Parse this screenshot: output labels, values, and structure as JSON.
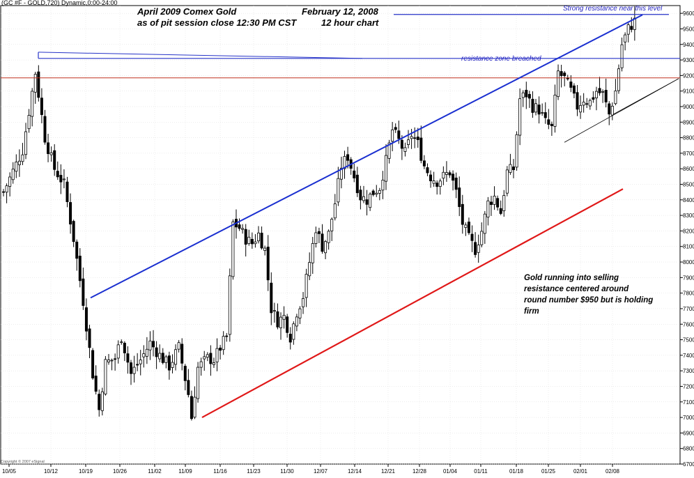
{
  "header": {
    "symbol_label": "(GC #F - GOLD,720) Dynamic,0:00-24:00",
    "copyright": "Copyright © 2007 eSignal"
  },
  "titles": {
    "line1_left": "April 2009 Comex Gold",
    "line1_right": "February 12, 2008",
    "line2_left": "as of pit session close 12:30 PM CST",
    "line2_right": "12 hour chart"
  },
  "annotations": {
    "strong_resistance": "Strong resistance near this level",
    "zone_breached": "resistance zone breached",
    "note_lines": [
      "Gold running into selling",
      "resistance centered around",
      "round number $950 but is holding",
      "firm"
    ]
  },
  "colors": {
    "background": "#ffffff",
    "candle": "#000000",
    "upper_trendline": "#1a2fd0",
    "lower_trendline": "#e01818",
    "red_horizontal": "#c0301e",
    "blue_horizontal": "#2633c8",
    "thin_channel": "#000000",
    "grid": "#d9d9d9"
  },
  "chart_data": {
    "type": "candlestick",
    "title": "April 2009 Comex Gold",
    "ylim": [
      670,
      965
    ],
    "x_ticks": [
      "10/05",
      "10/12",
      "10/19",
      "10/26",
      "11/02",
      "11/09",
      "11/16",
      "11/23",
      "11/30",
      "12/07",
      "12/14",
      "12/21",
      "12/28",
      "01/04",
      "01/11",
      "01/18",
      "01/25",
      "02/01",
      "02/08"
    ],
    "y_ticks": [
      6700,
      6800,
      6900,
      7000,
      7100,
      7200,
      7300,
      7400,
      7500,
      7600,
      7700,
      7800,
      7900,
      8000,
      8100,
      8200,
      8300,
      8400,
      8500,
      8600,
      8700,
      8800,
      8900,
      9000,
      9100,
      9200,
      9300,
      9400,
      9500,
      9600
    ],
    "grid": true,
    "waypoints": [
      {
        "x": 0,
        "y": 845
      },
      {
        "x": 6,
        "y": 872
      },
      {
        "x": 10,
        "y": 922
      },
      {
        "x": 13,
        "y": 880
      },
      {
        "x": 16,
        "y": 860
      },
      {
        "x": 19,
        "y": 850
      },
      {
        "x": 22,
        "y": 815
      },
      {
        "x": 25,
        "y": 775
      },
      {
        "x": 28,
        "y": 728
      },
      {
        "x": 30,
        "y": 705
      },
      {
        "x": 32,
        "y": 735
      },
      {
        "x": 35,
        "y": 738
      },
      {
        "x": 37,
        "y": 752
      },
      {
        "x": 40,
        "y": 728
      },
      {
        "x": 43,
        "y": 737
      },
      {
        "x": 46,
        "y": 748
      },
      {
        "x": 49,
        "y": 740
      },
      {
        "x": 52,
        "y": 733
      },
      {
        "x": 55,
        "y": 745
      },
      {
        "x": 58,
        "y": 715
      },
      {
        "x": 59,
        "y": 700
      },
      {
        "x": 61,
        "y": 732
      },
      {
        "x": 64,
        "y": 738
      },
      {
        "x": 66,
        "y": 737
      },
      {
        "x": 68,
        "y": 745
      },
      {
        "x": 70,
        "y": 752
      },
      {
        "x": 72,
        "y": 825
      },
      {
        "x": 74,
        "y": 822
      },
      {
        "x": 76,
        "y": 815
      },
      {
        "x": 78,
        "y": 812
      },
      {
        "x": 80,
        "y": 818
      },
      {
        "x": 82,
        "y": 808
      },
      {
        "x": 84,
        "y": 770
      },
      {
        "x": 86,
        "y": 762
      },
      {
        "x": 88,
        "y": 765
      },
      {
        "x": 90,
        "y": 752
      },
      {
        "x": 92,
        "y": 768
      },
      {
        "x": 94,
        "y": 778
      },
      {
        "x": 96,
        "y": 800
      },
      {
        "x": 98,
        "y": 822
      },
      {
        "x": 100,
        "y": 810
      },
      {
        "x": 102,
        "y": 818
      },
      {
        "x": 104,
        "y": 838
      },
      {
        "x": 106,
        "y": 862
      },
      {
        "x": 108,
        "y": 868
      },
      {
        "x": 110,
        "y": 855
      },
      {
        "x": 112,
        "y": 842
      },
      {
        "x": 114,
        "y": 840
      },
      {
        "x": 116,
        "y": 845
      },
      {
        "x": 118,
        "y": 848
      },
      {
        "x": 120,
        "y": 865
      },
      {
        "x": 122,
        "y": 885
      },
      {
        "x": 124,
        "y": 878
      },
      {
        "x": 126,
        "y": 870
      },
      {
        "x": 128,
        "y": 882
      },
      {
        "x": 130,
        "y": 876
      },
      {
        "x": 132,
        "y": 862
      },
      {
        "x": 134,
        "y": 855
      },
      {
        "x": 136,
        "y": 852
      },
      {
        "x": 138,
        "y": 855
      },
      {
        "x": 140,
        "y": 858
      },
      {
        "x": 142,
        "y": 845
      },
      {
        "x": 144,
        "y": 825
      },
      {
        "x": 146,
        "y": 815
      },
      {
        "x": 148,
        "y": 808
      },
      {
        "x": 150,
        "y": 820
      },
      {
        "x": 152,
        "y": 838
      },
      {
        "x": 154,
        "y": 842
      },
      {
        "x": 156,
        "y": 832
      },
      {
        "x": 158,
        "y": 858
      },
      {
        "x": 160,
        "y": 860
      },
      {
        "x": 162,
        "y": 905
      },
      {
        "x": 164,
        "y": 908
      },
      {
        "x": 166,
        "y": 900
      },
      {
        "x": 168,
        "y": 898
      },
      {
        "x": 170,
        "y": 890
      },
      {
        "x": 172,
        "y": 886
      },
      {
        "x": 174,
        "y": 922
      },
      {
        "x": 176,
        "y": 918
      },
      {
        "x": 178,
        "y": 910
      },
      {
        "x": 180,
        "y": 900
      },
      {
        "x": 182,
        "y": 905
      },
      {
        "x": 184,
        "y": 903
      },
      {
        "x": 186,
        "y": 910
      },
      {
        "x": 188,
        "y": 908
      },
      {
        "x": 190,
        "y": 895
      },
      {
        "x": 192,
        "y": 910
      },
      {
        "x": 194,
        "y": 940
      },
      {
        "x": 196,
        "y": 950
      },
      {
        "x": 198,
        "y": 955
      }
    ]
  }
}
